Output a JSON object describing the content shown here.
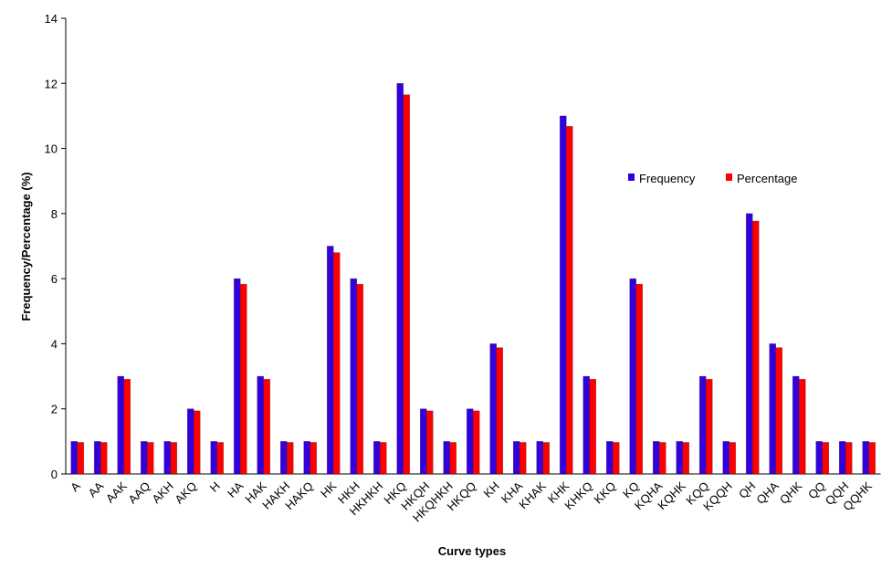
{
  "chart_data": {
    "type": "bar",
    "x_label": "Curve types",
    "y_label": "Frequency/Percentage (%)",
    "categories": [
      "A",
      "AA",
      "AAK",
      "AAQ",
      "AKH",
      "AKQ",
      "H",
      "HA",
      "HAK",
      "HAKH",
      "HAKQ",
      "HK",
      "HKH",
      "HKHKH",
      "HKQ",
      "HKQH",
      "HKQHKH",
      "HKQQ",
      "KH",
      "KHA",
      "KHAK",
      "KHK",
      "KHKQ",
      "KKQ",
      "KQ",
      "KQHA",
      "KQHK",
      "KQQ",
      "KQQH",
      "QH",
      "QHA",
      "QHK",
      "QQ",
      "QQH",
      "QQHK"
    ],
    "series": [
      {
        "name": "Frequency",
        "color": "#3300dd",
        "values": [
          1,
          1,
          3,
          1,
          1,
          2,
          1,
          6,
          3,
          1,
          1,
          7,
          6,
          1,
          12,
          2,
          1,
          2,
          4,
          1,
          1,
          11,
          3,
          1,
          6,
          1,
          1,
          3,
          1,
          8,
          4,
          3,
          1,
          1,
          1
        ]
      },
      {
        "name": "Percentage",
        "color": "#ff0000",
        "values": [
          0.97,
          0.97,
          2.91,
          0.97,
          0.97,
          1.94,
          0.97,
          5.83,
          2.91,
          0.97,
          0.97,
          6.8,
          5.83,
          0.97,
          11.65,
          1.94,
          0.97,
          1.94,
          3.88,
          0.97,
          0.97,
          10.68,
          2.91,
          0.97,
          5.83,
          0.97,
          0.97,
          2.91,
          0.97,
          7.77,
          3.88,
          2.91,
          0.97,
          0.97,
          0.97
        ]
      }
    ],
    "ylim": [
      0,
      14
    ],
    "yticks": [
      0,
      2,
      4,
      6,
      8,
      10,
      12,
      14
    ],
    "grid": false,
    "legend": "right"
  }
}
